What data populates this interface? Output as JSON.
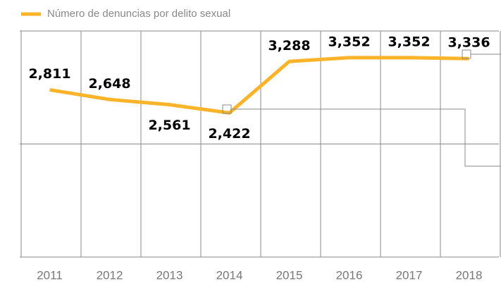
{
  "chart_data": {
    "type": "line",
    "categories": [
      "2011",
      "2012",
      "2013",
      "2014",
      "2015",
      "2016",
      "2017",
      "2018"
    ],
    "series": [
      {
        "name": "Número de denuncias por delito sexual",
        "color": "#fbb32a",
        "values": [
          2811,
          2648,
          2561,
          2422,
          3288,
          3352,
          3352,
          3336
        ],
        "value_labels": [
          "2,811",
          "2,648",
          "2,561",
          "2,422",
          "3,288",
          "3,352",
          "3,352",
          "3,336"
        ]
      }
    ],
    "ylim": [
      0,
      3800
    ],
    "yticks": [
      0,
      1900,
      3800
    ],
    "grid": true,
    "legend": "top-left"
  }
}
